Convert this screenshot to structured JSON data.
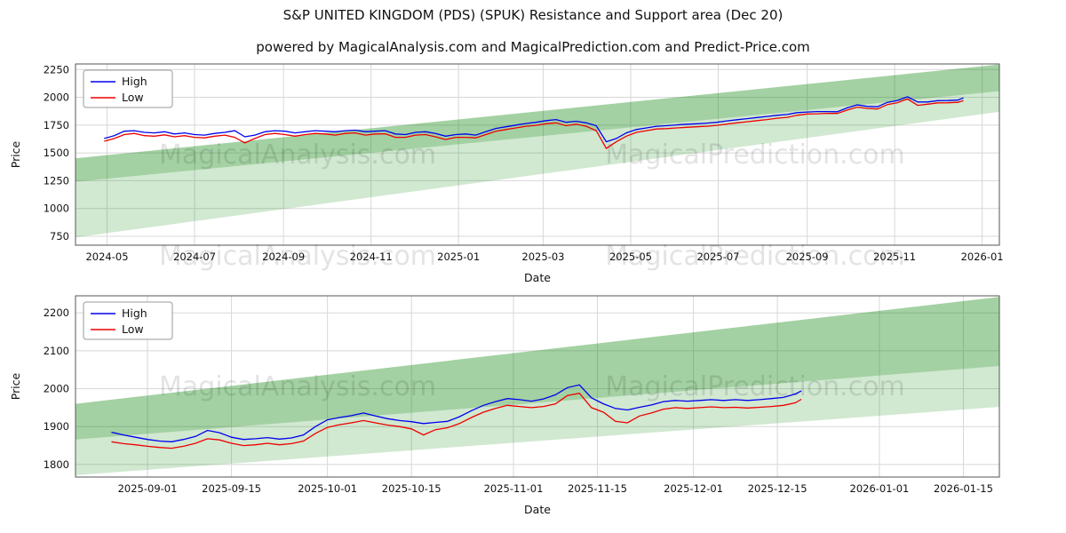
{
  "page": {
    "title": "S&P UNITED KINGDOM (PDS) (SPUK) Resistance and Support area (Dec 20)",
    "subtitle": "powered by MagicalAnalysis.com and MagicalPrediction.com and Predict-Price.com"
  },
  "watermarks": {
    "left": "MagicalAnalysis.com",
    "right": "MagicalPrediction.com"
  },
  "colors": {
    "high": "#0000ee",
    "low": "#ee0000",
    "band": "#008000",
    "grid": "#d8d8d8",
    "spine": "#555555"
  },
  "chart_data": [
    {
      "type": "line",
      "name": "main-chart",
      "xlabel": "Date",
      "ylabel": "Price",
      "grid": true,
      "legend_position": "upper left",
      "xlim": [
        "2024-04-09",
        "2026-01-13"
      ],
      "ylim": [
        670,
        2300
      ],
      "yticks": [
        750,
        1000,
        1250,
        1500,
        1750,
        2000,
        2250
      ],
      "xticks": [
        {
          "pos": "2024-05-01",
          "label": "2024-05"
        },
        {
          "pos": "2024-07-01",
          "label": "2024-07"
        },
        {
          "pos": "2024-09-01",
          "label": "2024-09"
        },
        {
          "pos": "2024-11-01",
          "label": "2024-11"
        },
        {
          "pos": "2025-01-01",
          "label": "2025-01"
        },
        {
          "pos": "2025-03-01",
          "label": "2025-03"
        },
        {
          "pos": "2025-05-01",
          "label": "2025-05"
        },
        {
          "pos": "2025-07-01",
          "label": "2025-07"
        },
        {
          "pos": "2025-09-01",
          "label": "2025-09"
        },
        {
          "pos": "2025-11-01",
          "label": "2025-11"
        },
        {
          "pos": "2026-01-01",
          "label": "2026-01"
        }
      ],
      "bands": [
        {
          "left": [
            740,
            1450
          ],
          "right": [
            1870,
            2295
          ],
          "opacity": 0.18
        },
        {
          "left": [
            1240,
            1452
          ],
          "right": [
            2055,
            2295
          ],
          "opacity": 0.22
        }
      ],
      "dates": [
        "2024-04-29",
        "2024-05-06",
        "2024-05-13",
        "2024-05-20",
        "2024-05-27",
        "2024-06-03",
        "2024-06-10",
        "2024-06-17",
        "2024-06-24",
        "2024-07-01",
        "2024-07-08",
        "2024-07-15",
        "2024-07-22",
        "2024-07-29",
        "2024-08-05",
        "2024-08-12",
        "2024-08-19",
        "2024-08-26",
        "2024-09-02",
        "2024-09-09",
        "2024-09-16",
        "2024-09-23",
        "2024-09-30",
        "2024-10-07",
        "2024-10-14",
        "2024-10-21",
        "2024-10-28",
        "2024-11-04",
        "2024-11-11",
        "2024-11-18",
        "2024-11-25",
        "2024-12-02",
        "2024-12-09",
        "2024-12-16",
        "2024-12-23",
        "2024-12-30",
        "2025-01-06",
        "2025-01-13",
        "2025-01-20",
        "2025-01-27",
        "2025-02-03",
        "2025-02-10",
        "2025-02-17",
        "2025-02-24",
        "2025-03-03",
        "2025-03-10",
        "2025-03-17",
        "2025-03-24",
        "2025-03-31",
        "2025-04-07",
        "2025-04-14",
        "2025-04-21",
        "2025-04-28",
        "2025-05-05",
        "2025-05-12",
        "2025-05-19",
        "2025-05-26",
        "2025-06-02",
        "2025-06-09",
        "2025-06-16",
        "2025-06-23",
        "2025-06-30",
        "2025-07-07",
        "2025-07-14",
        "2025-07-21",
        "2025-07-28",
        "2025-08-04",
        "2025-08-11",
        "2025-08-18",
        "2025-08-25",
        "2025-09-01",
        "2025-09-08",
        "2025-09-15",
        "2025-09-22",
        "2025-09-29",
        "2025-10-06",
        "2025-10-13",
        "2025-10-20",
        "2025-10-27",
        "2025-11-03",
        "2025-11-10",
        "2025-11-17",
        "2025-11-24",
        "2025-12-01",
        "2025-12-08",
        "2025-12-15",
        "2025-12-19"
      ],
      "series": [
        {
          "name": "High",
          "color": "#0000ee",
          "values": [
            1630,
            1655,
            1695,
            1700,
            1685,
            1680,
            1690,
            1670,
            1680,
            1665,
            1660,
            1675,
            1685,
            1700,
            1645,
            1660,
            1690,
            1700,
            1695,
            1680,
            1690,
            1700,
            1695,
            1690,
            1700,
            1705,
            1690,
            1695,
            1700,
            1670,
            1665,
            1685,
            1690,
            1675,
            1650,
            1665,
            1670,
            1660,
            1690,
            1720,
            1735,
            1750,
            1765,
            1775,
            1790,
            1800,
            1775,
            1785,
            1770,
            1745,
            1600,
            1630,
            1680,
            1710,
            1725,
            1740,
            1745,
            1752,
            1758,
            1762,
            1768,
            1775,
            1788,
            1798,
            1808,
            1818,
            1828,
            1838,
            1845,
            1862,
            1868,
            1872,
            1872,
            1870,
            1905,
            1932,
            1918,
            1915,
            1955,
            1972,
            2005,
            1958,
            1958,
            1970,
            1971,
            1975,
            1995
          ]
        },
        {
          "name": "Low",
          "color": "#ee0000",
          "values": [
            1605,
            1630,
            1665,
            1675,
            1655,
            1650,
            1662,
            1645,
            1655,
            1640,
            1635,
            1650,
            1660,
            1640,
            1590,
            1630,
            1665,
            1675,
            1665,
            1650,
            1665,
            1675,
            1670,
            1660,
            1675,
            1680,
            1660,
            1670,
            1672,
            1640,
            1640,
            1660,
            1665,
            1645,
            1620,
            1640,
            1640,
            1635,
            1665,
            1695,
            1710,
            1725,
            1740,
            1748,
            1762,
            1770,
            1745,
            1758,
            1740,
            1700,
            1540,
            1600,
            1650,
            1685,
            1700,
            1715,
            1718,
            1725,
            1730,
            1735,
            1740,
            1748,
            1760,
            1770,
            1780,
            1790,
            1800,
            1812,
            1820,
            1838,
            1850,
            1852,
            1856,
            1855,
            1885,
            1912,
            1900,
            1895,
            1935,
            1952,
            1985,
            1928,
            1938,
            1950,
            1951,
            1955,
            1970
          ]
        }
      ]
    },
    {
      "type": "line",
      "name": "zoom-chart",
      "xlabel": "Date",
      "ylabel": "Price",
      "grid": true,
      "legend_position": "upper left",
      "xlim": [
        "2025-08-20",
        "2026-01-21"
      ],
      "ylim": [
        1767,
        2245
      ],
      "yticks": [
        1800,
        1900,
        2000,
        2100,
        2200
      ],
      "xticks": [
        {
          "pos": "2025-09-01",
          "label": "2025-09-01"
        },
        {
          "pos": "2025-09-15",
          "label": "2025-09-15"
        },
        {
          "pos": "2025-10-01",
          "label": "2025-10-01"
        },
        {
          "pos": "2025-10-15",
          "label": "2025-10-15"
        },
        {
          "pos": "2025-11-01",
          "label": "2025-11-01"
        },
        {
          "pos": "2025-11-15",
          "label": "2025-11-15"
        },
        {
          "pos": "2025-12-01",
          "label": "2025-12-01"
        },
        {
          "pos": "2025-12-15",
          "label": "2025-12-15"
        },
        {
          "pos": "2026-01-01",
          "label": "2026-01-01"
        },
        {
          "pos": "2026-01-15",
          "label": "2026-01-15"
        }
      ],
      "bands": [
        {
          "left": [
            1772,
            1960
          ],
          "right": [
            1952,
            2242
          ],
          "opacity": 0.18
        },
        {
          "left": [
            1866,
            1960
          ],
          "right": [
            2060,
            2242
          ],
          "opacity": 0.22
        }
      ],
      "dates": [
        "2025-08-26",
        "2025-08-28",
        "2025-08-30",
        "2025-09-01",
        "2025-09-03",
        "2025-09-05",
        "2025-09-07",
        "2025-09-09",
        "2025-09-11",
        "2025-09-13",
        "2025-09-15",
        "2025-09-17",
        "2025-09-19",
        "2025-09-21",
        "2025-09-23",
        "2025-09-25",
        "2025-09-27",
        "2025-09-29",
        "2025-10-01",
        "2025-10-03",
        "2025-10-05",
        "2025-10-07",
        "2025-10-09",
        "2025-10-11",
        "2025-10-13",
        "2025-10-15",
        "2025-10-17",
        "2025-10-19",
        "2025-10-21",
        "2025-10-23",
        "2025-10-25",
        "2025-10-27",
        "2025-10-29",
        "2025-10-31",
        "2025-11-02",
        "2025-11-04",
        "2025-11-06",
        "2025-11-08",
        "2025-11-10",
        "2025-11-12",
        "2025-11-14",
        "2025-11-16",
        "2025-11-18",
        "2025-11-20",
        "2025-11-22",
        "2025-11-24",
        "2025-11-26",
        "2025-11-28",
        "2025-11-30",
        "2025-12-02",
        "2025-12-04",
        "2025-12-06",
        "2025-12-08",
        "2025-12-10",
        "2025-12-12",
        "2025-12-14",
        "2025-12-16",
        "2025-12-18",
        "2025-12-19"
      ],
      "series": [
        {
          "name": "High",
          "color": "#0000ee",
          "values": [
            1885,
            1878,
            1872,
            1866,
            1862,
            1860,
            1866,
            1874,
            1890,
            1884,
            1872,
            1866,
            1868,
            1871,
            1867,
            1870,
            1878,
            1900,
            1918,
            1924,
            1929,
            1936,
            1928,
            1921,
            1916,
            1913,
            1908,
            1911,
            1914,
            1926,
            1942,
            1956,
            1966,
            1974,
            1971,
            1967,
            1973,
            1984,
            2003,
            2010,
            1976,
            1960,
            1948,
            1944,
            1951,
            1957,
            1966,
            1969,
            1967,
            1969,
            1971,
            1969,
            1971,
            1969,
            1971,
            1974,
            1977,
            1986,
            1994
          ]
        },
        {
          "name": "Low",
          "color": "#ee0000",
          "values": [
            1860,
            1855,
            1852,
            1848,
            1845,
            1843,
            1848,
            1856,
            1868,
            1865,
            1856,
            1850,
            1852,
            1856,
            1852,
            1855,
            1862,
            1882,
            1898,
            1905,
            1910,
            1916,
            1910,
            1904,
            1900,
            1894,
            1878,
            1892,
            1897,
            1908,
            1924,
            1938,
            1948,
            1956,
            1953,
            1950,
            1953,
            1960,
            1982,
            1988,
            1950,
            1938,
            1914,
            1910,
            1928,
            1936,
            1946,
            1950,
            1948,
            1950,
            1952,
            1950,
            1951,
            1949,
            1951,
            1953,
            1956,
            1963,
            1972
          ]
        }
      ]
    }
  ]
}
